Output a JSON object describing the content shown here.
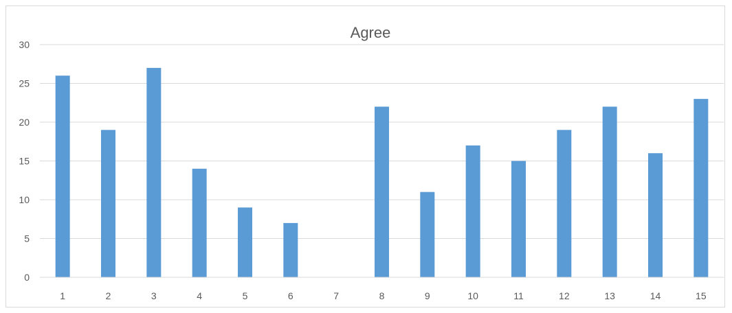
{
  "chart_data": {
    "type": "bar",
    "title": "Agree",
    "xlabel": "",
    "ylabel": "",
    "categories": [
      "1",
      "2",
      "3",
      "4",
      "5",
      "6",
      "7",
      "8",
      "9",
      "10",
      "11",
      "12",
      "13",
      "14",
      "15"
    ],
    "values": [
      26,
      19,
      27,
      14,
      9,
      7,
      0,
      22,
      11,
      17,
      15,
      19,
      22,
      16,
      23
    ],
    "ylim": [
      0,
      30
    ],
    "yticks": [
      "0",
      "5",
      "10",
      "15",
      "20",
      "25",
      "30"
    ],
    "grid": true,
    "legend": "none",
    "bar_color": "#5b9bd5",
    "grid_color": "#d9d9d9"
  }
}
